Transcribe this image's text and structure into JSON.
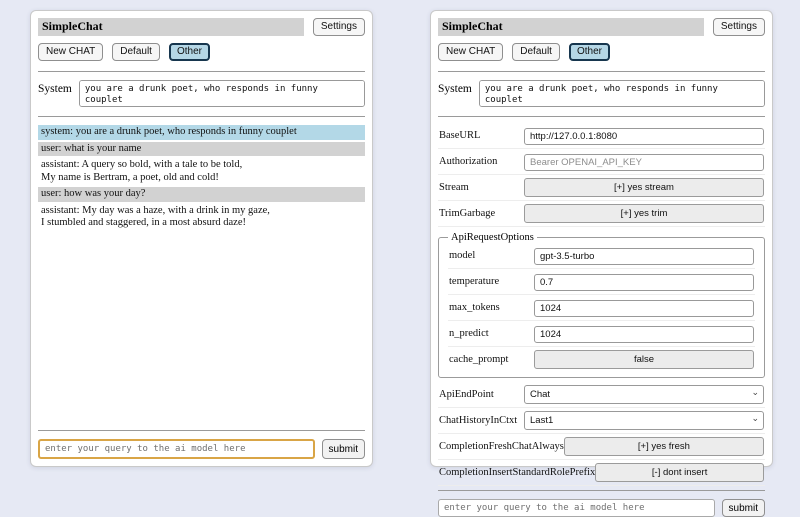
{
  "header": {
    "title": "SimpleChat",
    "settings_label": "Settings",
    "sessions": [
      {
        "label": "New CHAT",
        "selected": false
      },
      {
        "label": "Default",
        "selected": false
      },
      {
        "label": "Other",
        "selected": true
      }
    ]
  },
  "system_prompt": {
    "label": "System",
    "value": "you are a drunk poet, who responds in funny couplet"
  },
  "chat": {
    "messages": [
      {
        "role": "system",
        "display": "system: you are a drunk poet, who responds in funny couplet"
      },
      {
        "role": "user",
        "display": "user: what is your name"
      },
      {
        "role": "assistant",
        "display": "assistant: A query so bold, with a tale to be told,\nMy name is Bertram, a poet, old and cold!"
      },
      {
        "role": "user",
        "display": "user: how was your day?"
      },
      {
        "role": "assistant",
        "display": "assistant: My day was a haze, with a drink in my gaze,\nI stumbled and staggered, in a most absurd daze!"
      }
    ]
  },
  "settings": {
    "base_url": {
      "label": "BaseURL",
      "value": "http://127.0.0.1:8080"
    },
    "authorization": {
      "label": "Authorization",
      "placeholder": "Bearer OPENAI_API_KEY"
    },
    "stream": {
      "label": "Stream",
      "button": "[+] yes stream"
    },
    "trim_garbage": {
      "label": "TrimGarbage",
      "button": "[+] yes trim"
    },
    "api_request_options": {
      "legend": "ApiRequestOptions",
      "model": {
        "label": "model",
        "value": "gpt-3.5-turbo"
      },
      "temperature": {
        "label": "temperature",
        "value": "0.7"
      },
      "max_tokens": {
        "label": "max_tokens",
        "value": "1024"
      },
      "n_predict": {
        "label": "n_predict",
        "value": "1024"
      },
      "cache_prompt": {
        "label": "cache_prompt",
        "button": "false"
      }
    },
    "api_endpoint": {
      "label": "ApiEndPoint",
      "value": "Chat"
    },
    "chat_history_in_ctxt": {
      "label": "ChatHistoryInCtxt",
      "value": "Last1"
    },
    "completion_fresh": {
      "label": "CompletionFreshChatAlways",
      "button": "[+] yes fresh"
    },
    "completion_insert": {
      "label": "CompletionInsertStandardRolePrefix",
      "button": "[-] dont insert"
    }
  },
  "query": {
    "placeholder": "enter your query to the ai model here",
    "submit_label": "submit"
  },
  "icons": {
    "select_chevron": "⌄"
  }
}
